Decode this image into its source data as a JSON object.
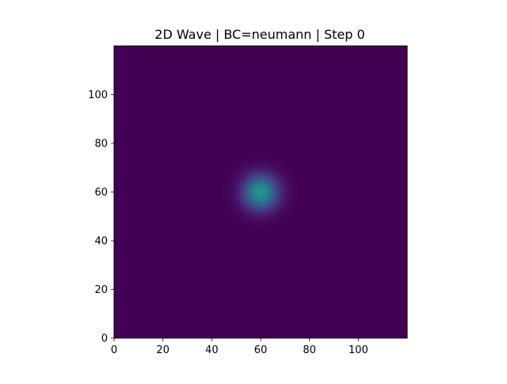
{
  "chart_data": {
    "type": "heatmap",
    "title": "2D Wave | BC=neumann | Step 0",
    "xlabel": "",
    "ylabel": "",
    "xlim": [
      0,
      120
    ],
    "ylim": [
      0,
      120
    ],
    "x_ticks": [
      0,
      20,
      40,
      60,
      80,
      100
    ],
    "y_ticks": [
      0,
      20,
      40,
      60,
      80,
      100
    ],
    "grid": false,
    "colormap": "viridis",
    "colormap_low": "#440154",
    "colormap_high": "#fde725",
    "field": {
      "shape": "gaussian",
      "center": [
        60,
        60
      ],
      "sigma": 5,
      "peak": 0.65,
      "background": 0.0
    }
  }
}
